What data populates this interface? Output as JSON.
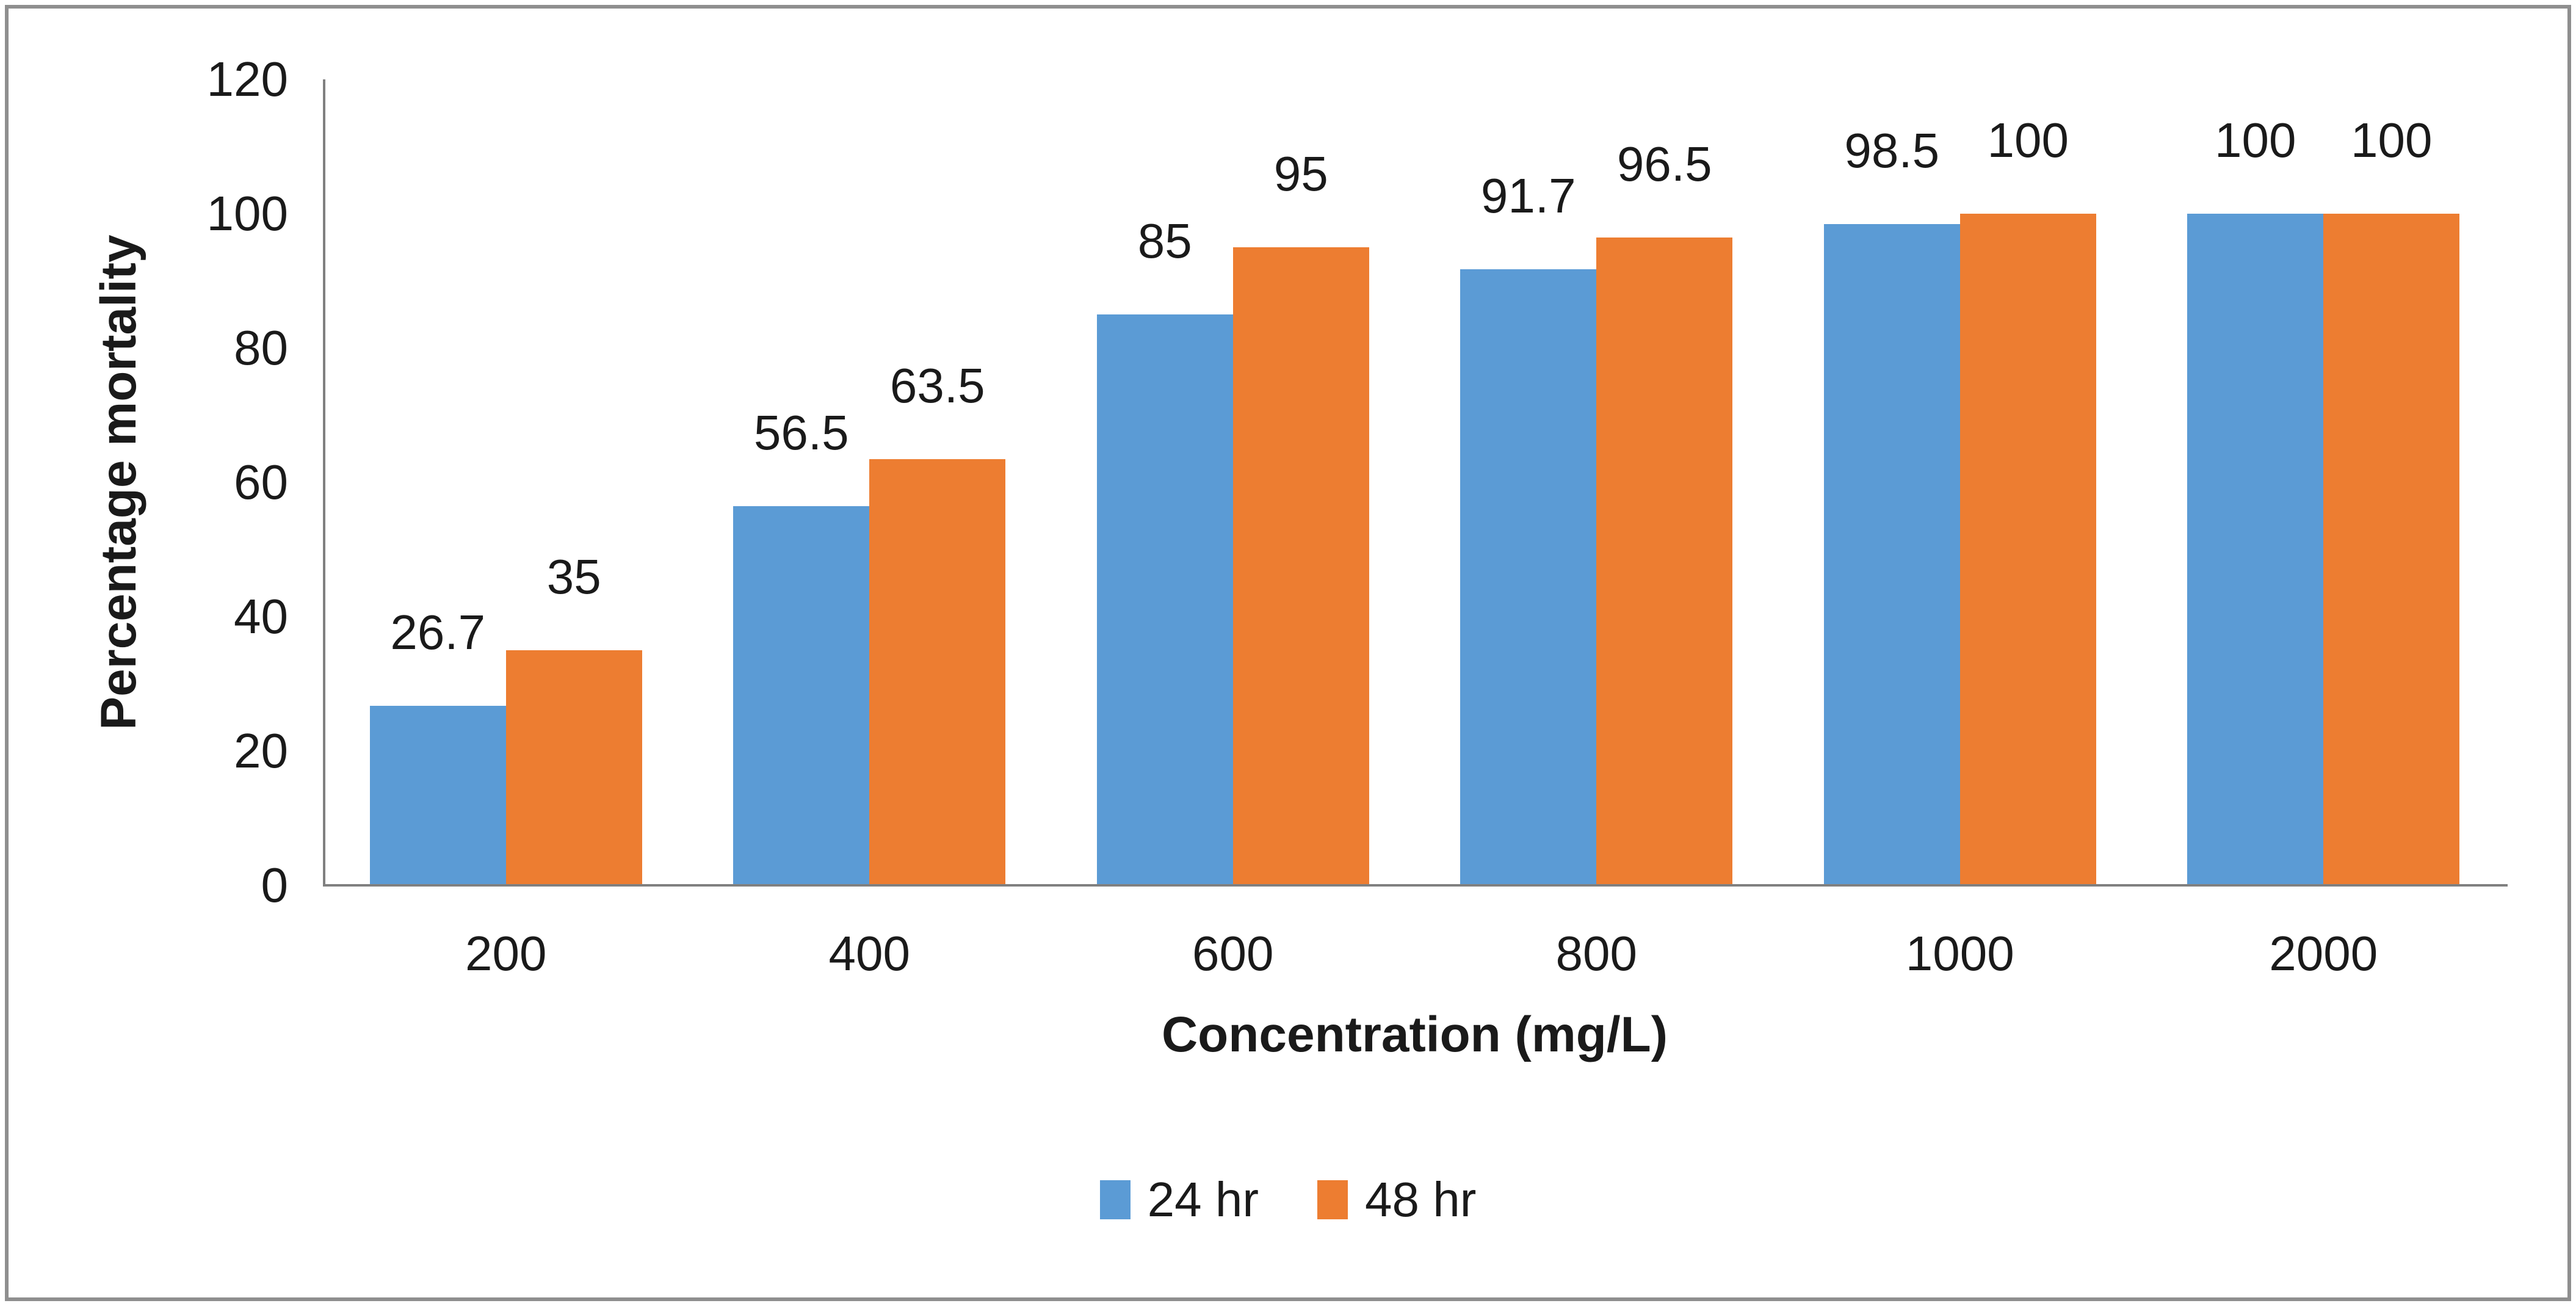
{
  "chart_data": {
    "type": "bar",
    "title": "",
    "categories": [
      "200",
      "400",
      "600",
      "800",
      "1000",
      "2000"
    ],
    "series": [
      {
        "name": "24 hr",
        "color": "#5B9BD5",
        "values": [
          26.7,
          56.5,
          85,
          91.7,
          98.5,
          100
        ],
        "labels": [
          "26.7",
          "56.5",
          "85",
          "91.7",
          "98.5",
          "100"
        ]
      },
      {
        "name": "48 hr",
        "color": "#ED7D31",
        "values": [
          35,
          63.5,
          95,
          96.5,
          100,
          100
        ],
        "labels": [
          "35",
          "63.5",
          "95",
          "96.5",
          "100",
          "100"
        ]
      }
    ],
    "xlabel": "Concentration (mg/L)",
    "ylabel": "Percentage mortality",
    "ylim": [
      0,
      120
    ],
    "yticks": [
      0,
      20,
      40,
      60,
      80,
      100,
      120
    ],
    "grid": false,
    "data_labels": true,
    "legend_position": "bottom",
    "colors": {
      "axis_line": "#808080",
      "text": "#1a1a1a",
      "frame_border": "#8f8f8f",
      "background": "#ffffff"
    }
  }
}
